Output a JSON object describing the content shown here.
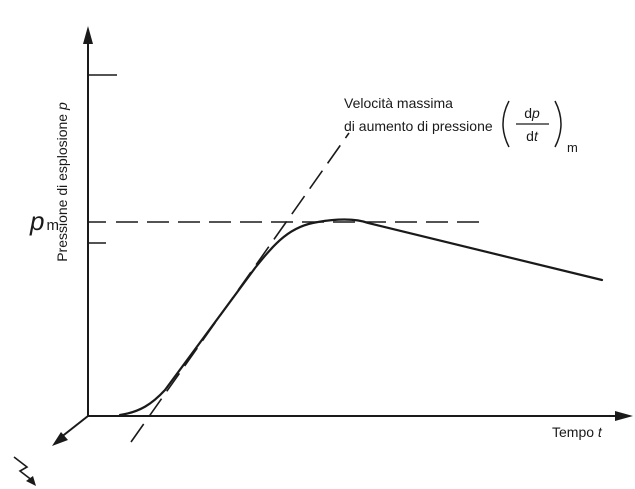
{
  "diagram": {
    "y_axis_label": "Pressione di esplosione",
    "y_axis_symbol": "p",
    "x_axis_label": "Tempo",
    "x_axis_symbol": "t",
    "pm_label_main": "p",
    "pm_label_sub": "m",
    "annotation_line1": "Velocità massima",
    "annotation_line2": "di aumento di pressione",
    "fraction_numerator_d": "d",
    "fraction_numerator_p": "p",
    "fraction_denominator_d": "d",
    "fraction_denominator_t": "t",
    "fraction_subscript": "m"
  }
}
